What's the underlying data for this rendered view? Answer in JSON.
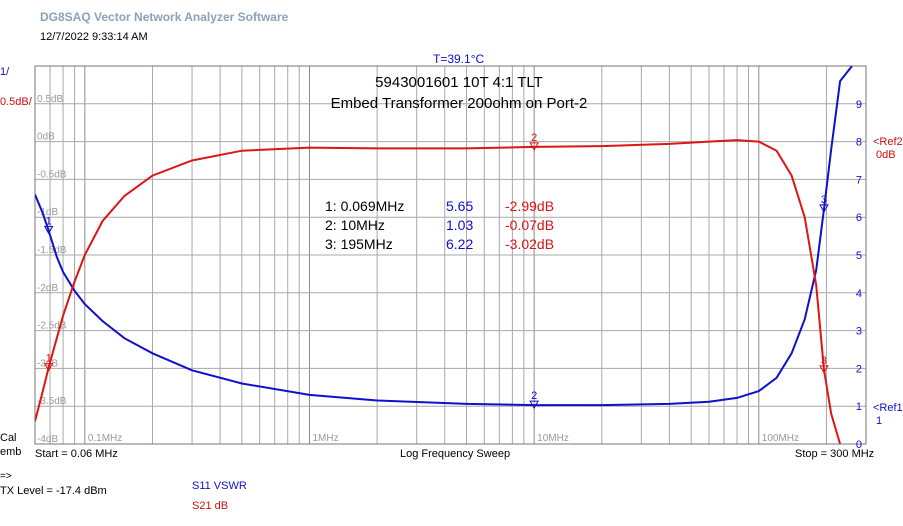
{
  "app": {
    "title": "DG8SAQ Vector Network Analyzer Software"
  },
  "datetime": "12/7/2022   9:33:14 AM",
  "temperature": "T=39.1°C",
  "sweep": {
    "start": "Start = 0.06 MHz",
    "mode": "Log Frequency Sweep",
    "stop": "Stop = 300 MHz"
  },
  "status": {
    "cal": "Cal",
    "emb": "emb",
    "arrow": "=>",
    "tx_level": "TX Level = -17.4 dBm"
  },
  "legend": {
    "s11": "S11  VSWR",
    "s21": "S21  dB"
  },
  "axis_titles": {
    "left_blue": "1/",
    "left_red": "0.5dB/",
    "ref2": "<Ref2",
    "ref2_value": "0dB",
    "ref1": "<Ref1",
    "ref1_value": "1"
  },
  "colors": {
    "s11": "#1010cc",
    "s21": "#dd1515",
    "grid": "#a8a8a8",
    "frame": "#777777"
  },
  "chart_data": {
    "type": "line",
    "title": "5943001601 10T 4:1 TLT",
    "subtitle": "Embed Transformer 200ohm on Port-2",
    "x_scale": "log",
    "x_range_mhz": [
      0.06,
      300
    ],
    "x_tick_labels": [
      {
        "value": 0.1,
        "label": "0.1MHz"
      },
      {
        "value": 1,
        "label": "1MHz"
      },
      {
        "value": 10,
        "label": "10MHz"
      },
      {
        "value": 100,
        "label": "100MHz"
      }
    ],
    "y_left": {
      "unit": "dB",
      "range": [
        -4,
        1
      ],
      "ticks": [
        0.5,
        0,
        -0.5,
        -1,
        -1.5,
        -2,
        -2.5,
        -3,
        -3.5,
        -4
      ],
      "tick_labels": [
        "0.5dB",
        "0dB",
        "-0.5dB",
        "-1dB",
        "-1.5dB",
        "-2dB",
        "-2.5dB",
        "-3dB",
        "-3.5dB",
        "-4dB"
      ]
    },
    "y_right": {
      "unit": "VSWR",
      "range": [
        0,
        10
      ],
      "ticks": [
        9,
        8,
        7,
        6,
        5,
        4,
        3,
        2,
        1,
        0
      ],
      "tick_labels": [
        "9",
        "8",
        "7",
        "6",
        "5",
        "4",
        "3",
        "2",
        "1",
        "0"
      ]
    },
    "grid": true,
    "series": [
      {
        "name": "S11  VSWR",
        "axis": "right",
        "x": [
          0.06,
          0.065,
          0.069,
          0.075,
          0.08,
          0.09,
          0.1,
          0.12,
          0.15,
          0.2,
          0.3,
          0.5,
          1,
          2,
          5,
          10,
          20,
          40,
          60,
          80,
          100,
          120,
          140,
          160,
          180,
          195,
          210,
          230,
          260
        ],
        "y": [
          6.6,
          6.1,
          5.65,
          4.95,
          4.55,
          4.05,
          3.7,
          3.25,
          2.8,
          2.4,
          1.95,
          1.6,
          1.3,
          1.15,
          1.06,
          1.03,
          1.03,
          1.06,
          1.12,
          1.22,
          1.4,
          1.75,
          2.4,
          3.3,
          4.6,
          6.22,
          7.8,
          9.6,
          10
        ]
      },
      {
        "name": "S21  dB",
        "axis": "left",
        "x": [
          0.06,
          0.065,
          0.069,
          0.075,
          0.08,
          0.09,
          0.1,
          0.12,
          0.15,
          0.2,
          0.3,
          0.5,
          1,
          2,
          5,
          10,
          20,
          40,
          60,
          80,
          100,
          120,
          140,
          160,
          180,
          195,
          210,
          230
        ],
        "y": [
          -3.7,
          -3.3,
          -2.99,
          -2.6,
          -2.3,
          -1.85,
          -1.5,
          -1.05,
          -0.72,
          -0.45,
          -0.25,
          -0.12,
          -0.08,
          -0.09,
          -0.09,
          -0.07,
          -0.06,
          -0.03,
          0.0,
          0.02,
          0.0,
          -0.12,
          -0.45,
          -1.0,
          -1.9,
          -3.02,
          -3.6,
          -4.0
        ]
      }
    ],
    "markers": [
      {
        "id": "1",
        "freq_mhz": 0.069,
        "freq_label": "0.069MHz",
        "vswr": 5.65,
        "vswr_label": "5.65",
        "s21_db": -2.99,
        "s21_label": "-2.99dB"
      },
      {
        "id": "2",
        "freq_mhz": 10,
        "freq_label": "10MHz",
        "vswr": 1.03,
        "vswr_label": "1.03",
        "s21_db": -0.07,
        "s21_label": "-0.07dB"
      },
      {
        "id": "3",
        "freq_mhz": 195,
        "freq_label": "195MHz",
        "vswr": 6.22,
        "vswr_label": "6.22",
        "s21_db": -3.02,
        "s21_label": "-3.02dB"
      }
    ]
  }
}
